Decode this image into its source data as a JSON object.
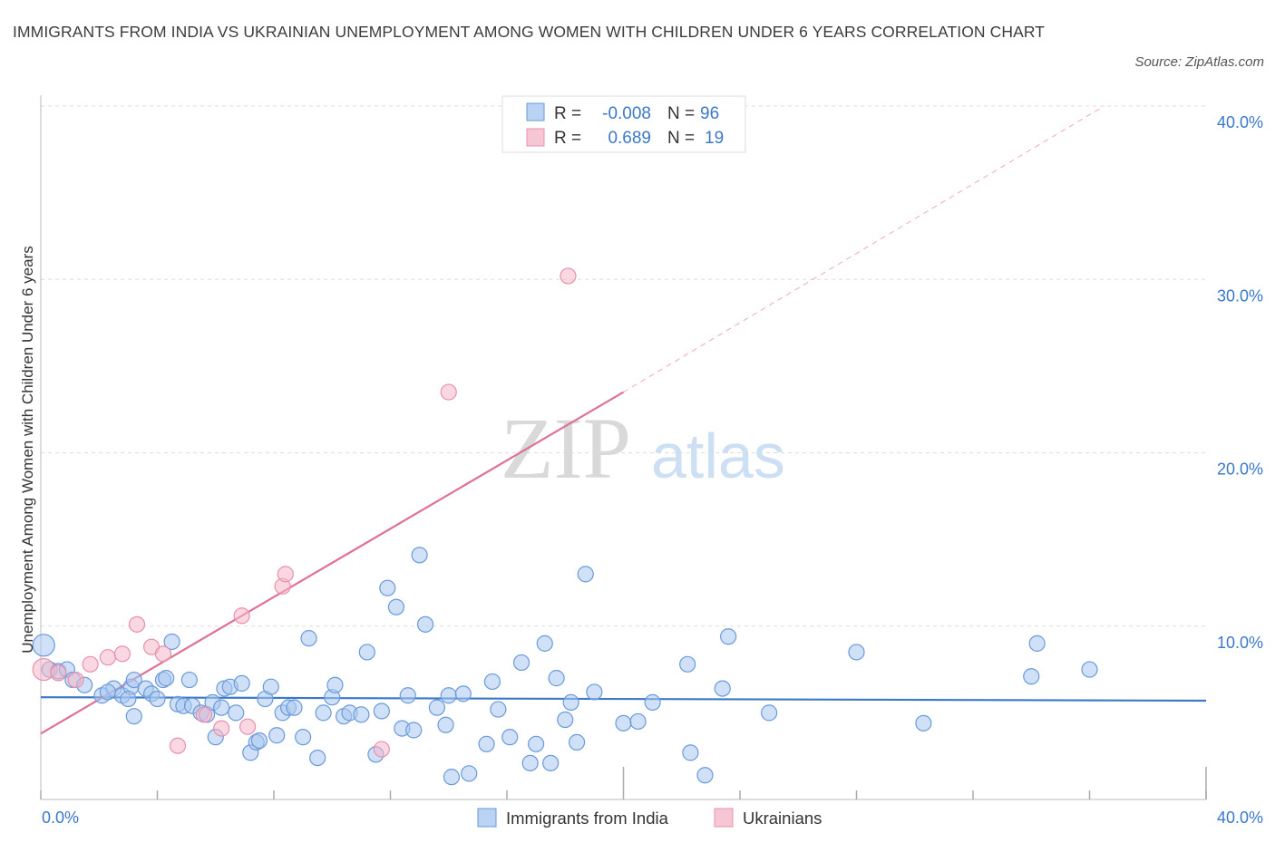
{
  "title": "IMMIGRANTS FROM INDIA VS UKRAINIAN UNEMPLOYMENT AMONG WOMEN WITH CHILDREN UNDER 6 YEARS CORRELATION CHART",
  "source": "Source: ZipAtlas.com",
  "watermark": {
    "zip": "ZIP",
    "atlas": "atlas"
  },
  "colors": {
    "blue": "#3a78c9",
    "blue_fill": "#a9c8f0",
    "pink": "#e07098",
    "pink_fill": "#f5b8cb",
    "grid": "#dddddd"
  },
  "legend_box": {
    "rows": [
      {
        "r_label": "R =",
        "r_value": "-0.008",
        "n_label": "N =",
        "n_value": "96"
      },
      {
        "r_label": "R =",
        "r_value": "0.689",
        "n_label": "N =",
        "n_value": "19"
      }
    ]
  },
  "bottom_legend": [
    "Immigrants from India",
    "Ukrainians"
  ],
  "chart_data": {
    "type": "scatter",
    "title": "IMMIGRANTS FROM INDIA VS UKRAINIAN UNEMPLOYMENT AMONG WOMEN WITH CHILDREN UNDER 6 YEARS CORRELATION CHART",
    "xlabel": "",
    "ylabel": "Unemployment Among Women with Children Under 6 years",
    "xlim": [
      0,
      40
    ],
    "ylim": [
      0,
      40
    ],
    "x_tick_labels": [
      "0.0%",
      "40.0%"
    ],
    "y_tick_labels": [
      "10.0%",
      "20.0%",
      "30.0%",
      "40.0%"
    ],
    "y_ticks": [
      10,
      20,
      30,
      40
    ],
    "grid": true,
    "legend_position": "top-center",
    "series": [
      {
        "name": "Immigrants from India",
        "color": "#3a78c9",
        "r": -0.008,
        "n": 96,
        "trend": {
          "x": [
            0,
            40
          ],
          "y": [
            5.9,
            5.7
          ],
          "style": "solid"
        },
        "points": [
          [
            0.1,
            8.9
          ],
          [
            0.3,
            7.5
          ],
          [
            0.6,
            7.4
          ],
          [
            0.9,
            7.5
          ],
          [
            1.1,
            6.9
          ],
          [
            1.5,
            6.6
          ],
          [
            2.1,
            6.0
          ],
          [
            2.5,
            6.4
          ],
          [
            2.3,
            6.2
          ],
          [
            2.8,
            6.0
          ],
          [
            3.1,
            6.5
          ],
          [
            3.2,
            6.9
          ],
          [
            3.0,
            5.8
          ],
          [
            3.2,
            4.8
          ],
          [
            3.6,
            6.4
          ],
          [
            3.8,
            6.1
          ],
          [
            4.0,
            5.8
          ],
          [
            4.2,
            6.9
          ],
          [
            4.3,
            7.0
          ],
          [
            4.5,
            9.1
          ],
          [
            4.7,
            5.5
          ],
          [
            4.9,
            5.4
          ],
          [
            5.1,
            6.9
          ],
          [
            5.2,
            5.4
          ],
          [
            5.5,
            5.0
          ],
          [
            5.7,
            4.9
          ],
          [
            5.9,
            5.6
          ],
          [
            6.0,
            3.6
          ],
          [
            6.2,
            5.3
          ],
          [
            6.3,
            6.4
          ],
          [
            6.5,
            6.5
          ],
          [
            6.7,
            5.0
          ],
          [
            6.9,
            6.7
          ],
          [
            7.2,
            2.7
          ],
          [
            7.4,
            3.3
          ],
          [
            7.5,
            3.4
          ],
          [
            7.7,
            5.8
          ],
          [
            7.9,
            6.5
          ],
          [
            8.1,
            3.7
          ],
          [
            8.3,
            5.0
          ],
          [
            8.5,
            5.3
          ],
          [
            8.7,
            5.3
          ],
          [
            9.0,
            3.6
          ],
          [
            9.2,
            9.3
          ],
          [
            9.5,
            2.4
          ],
          [
            9.7,
            5.0
          ],
          [
            10.0,
            5.9
          ],
          [
            10.1,
            6.6
          ],
          [
            10.4,
            4.8
          ],
          [
            10.6,
            5.0
          ],
          [
            11.0,
            4.9
          ],
          [
            11.2,
            8.5
          ],
          [
            11.5,
            2.6
          ],
          [
            11.7,
            5.1
          ],
          [
            11.9,
            12.2
          ],
          [
            12.2,
            11.1
          ],
          [
            12.4,
            4.1
          ],
          [
            12.6,
            6.0
          ],
          [
            12.8,
            4.0
          ],
          [
            13.0,
            14.1
          ],
          [
            13.2,
            10.1
          ],
          [
            13.6,
            5.3
          ],
          [
            13.9,
            4.3
          ],
          [
            14.0,
            6.0
          ],
          [
            14.1,
            1.3
          ],
          [
            14.5,
            6.1
          ],
          [
            14.7,
            1.5
          ],
          [
            15.3,
            3.2
          ],
          [
            15.5,
            6.8
          ],
          [
            15.7,
            5.2
          ],
          [
            16.1,
            3.6
          ],
          [
            16.5,
            7.9
          ],
          [
            16.8,
            2.1
          ],
          [
            17.0,
            3.2
          ],
          [
            17.3,
            9.0
          ],
          [
            17.5,
            2.1
          ],
          [
            17.7,
            7.0
          ],
          [
            18.0,
            4.6
          ],
          [
            18.2,
            5.6
          ],
          [
            18.4,
            3.3
          ],
          [
            18.7,
            13.0
          ],
          [
            19.0,
            6.2
          ],
          [
            20.0,
            4.4
          ],
          [
            20.5,
            4.5
          ],
          [
            21.0,
            5.6
          ],
          [
            22.2,
            7.8
          ],
          [
            22.3,
            2.7
          ],
          [
            22.8,
            1.4
          ],
          [
            23.4,
            6.4
          ],
          [
            23.6,
            9.4
          ],
          [
            25.0,
            5.0
          ],
          [
            28.0,
            8.5
          ],
          [
            30.3,
            4.4
          ],
          [
            34.0,
            7.1
          ],
          [
            34.2,
            9.0
          ],
          [
            36.0,
            7.5
          ]
        ]
      },
      {
        "name": "Ukrainians",
        "color": "#e07098",
        "r": 0.689,
        "n": 19,
        "trend": {
          "x": [
            0,
            20
          ],
          "y": [
            3.8,
            23.5
          ],
          "style": "solid",
          "extended": {
            "x": [
              20,
              36.5
            ],
            "y": [
              23.5,
              40.0
            ],
            "style": "dashed"
          }
        },
        "points": [
          [
            0.1,
            7.5
          ],
          [
            0.6,
            7.3
          ],
          [
            1.2,
            6.9
          ],
          [
            1.7,
            7.8
          ],
          [
            2.3,
            8.2
          ],
          [
            2.8,
            8.4
          ],
          [
            3.3,
            10.1
          ],
          [
            3.8,
            8.8
          ],
          [
            4.2,
            8.4
          ],
          [
            4.7,
            3.1
          ],
          [
            5.6,
            4.9
          ],
          [
            6.2,
            4.1
          ],
          [
            6.9,
            10.6
          ],
          [
            7.1,
            4.2
          ],
          [
            8.3,
            12.3
          ],
          [
            8.4,
            13.0
          ],
          [
            11.7,
            2.9
          ],
          [
            14.0,
            23.5
          ],
          [
            18.1,
            30.2
          ]
        ]
      }
    ]
  }
}
